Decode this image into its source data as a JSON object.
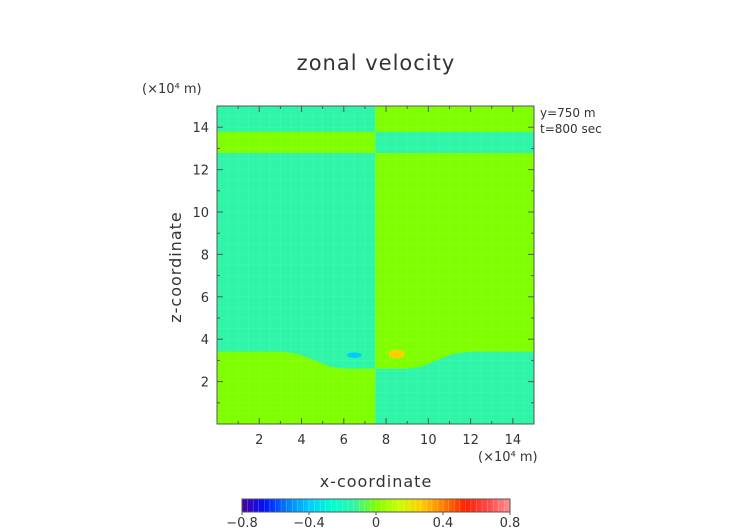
{
  "chart_data": {
    "type": "heatmap",
    "title": "zonal velocity",
    "xlabel": "x-coordinate",
    "ylabel": "z-coordinate",
    "x_unit": "(×10⁴ m)",
    "z_unit": "(×10⁴ m)",
    "xlim": [
      0,
      15
    ],
    "ylim": [
      0,
      15
    ],
    "x_ticks": [
      "2",
      "4",
      "6",
      "8",
      "10",
      "12",
      "14"
    ],
    "y_ticks": [
      "2",
      "4",
      "6",
      "8",
      "10",
      "12",
      "14"
    ],
    "annotations": [
      "y=750 m",
      "t=800 sec"
    ],
    "grid": false,
    "colorbar": {
      "range": [
        -0.8,
        0.8
      ],
      "tick_values": [
        -0.8,
        -0.4,
        0,
        0.4,
        0.8
      ],
      "tick_labels": [
        "−0.8",
        "−0.4",
        "0",
        "0.4",
        "0.8"
      ],
      "colors": [
        "#4a00a0",
        "#0010ff",
        "#007dff",
        "#00ccff",
        "#00ffd0",
        "#2ff5a8",
        "#80ff00",
        "#c8ff00",
        "#ffd000",
        "#ff8000",
        "#ff2000",
        "#ff4848",
        "#ff9090"
      ]
    },
    "regions": [
      {
        "name": "upper-left",
        "x": [
          0,
          7.5
        ],
        "z_bottom_profile": "lower-boundary",
        "z_top": 12.8,
        "value": 0.02,
        "color": "#2ff5a8"
      },
      {
        "name": "upper-right",
        "x": [
          7.5,
          15
        ],
        "z_bottom_profile": "lower-boundary",
        "z_top": 12.8,
        "value": 0.1,
        "color": "#80ff00"
      },
      {
        "name": "band-left",
        "x": [
          0,
          7.5
        ],
        "z": [
          12.8,
          13.8
        ],
        "value": 0.1,
        "color": "#80ff00"
      },
      {
        "name": "band-right",
        "x": [
          7.5,
          15
        ],
        "z": [
          12.8,
          13.8
        ],
        "value": 0.02,
        "color": "#2ff5a8"
      },
      {
        "name": "top-left",
        "x": [
          0,
          7.5
        ],
        "z": [
          13.8,
          15
        ],
        "value": 0.02,
        "color": "#2ff5a8"
      },
      {
        "name": "top-right",
        "x": [
          7.5,
          15
        ],
        "z": [
          13.8,
          15
        ],
        "value": 0.1,
        "color": "#80ff00"
      },
      {
        "name": "lower-left",
        "x": [
          0,
          7.5
        ],
        "z_top_profile": "lower-boundary",
        "z_bottom": 0,
        "value": 0.1,
        "color": "#80ff00"
      },
      {
        "name": "lower-right",
        "x": [
          7.5,
          15
        ],
        "z_top_profile": "lower-boundary",
        "z_bottom": 0,
        "value": 0.02,
        "color": "#2ff5a8"
      }
    ],
    "lower_boundary": {
      "x": [
        0,
        3.0,
        3.8,
        4.6,
        5.3,
        6.0,
        7.0,
        7.5,
        8.0,
        9.0,
        9.7,
        10.4,
        11.2,
        12.0,
        15
      ],
      "z": [
        3.4,
        3.4,
        3.3,
        3.0,
        2.7,
        2.6,
        2.6,
        2.6,
        2.6,
        2.6,
        2.7,
        3.0,
        3.3,
        3.4,
        3.4
      ]
    },
    "features": [
      {
        "name": "negative-blob",
        "x": 6.5,
        "z": 3.25,
        "rx": 0.35,
        "rz": 0.13,
        "value": -0.25,
        "color": "#00ccff"
      },
      {
        "name": "positive-blob",
        "x": 8.5,
        "z": 3.3,
        "rx": 0.4,
        "rz": 0.2,
        "value": 0.25,
        "color": "#ffd000"
      }
    ]
  }
}
